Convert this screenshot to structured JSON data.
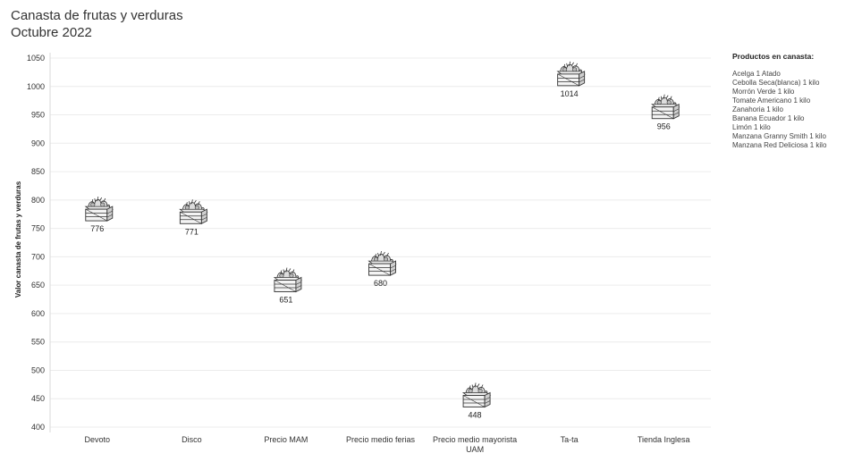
{
  "header": {
    "title_line1": "Canasta de frutas y verduras",
    "title_line2": "Octubre 2022"
  },
  "legend": {
    "title": "Productos en canasta:",
    "items": [
      "Acelga  1 Atado",
      "Cebolla Seca(blanca)  1 kilo",
      "Morrón Verde  1 kilo",
      "Tomate Americano 1 kilo",
      "Zanahoria 1 kilo",
      "Banana Ecuador  1 kilo",
      "Limón   1 kilo",
      "Manzana Granny Smith  1 kilo",
      "Manzana Red Deliciosa 1 kilo"
    ]
  },
  "chart_data": {
    "type": "scatter",
    "marker_icon": "produce-crate-icon",
    "ylabel": "Valor canasta de frutas y verduras",
    "xlabel": "",
    "ylim": [
      400,
      1050
    ],
    "yticks": [
      400,
      450,
      500,
      550,
      600,
      650,
      700,
      750,
      800,
      850,
      900,
      950,
      1000,
      1050
    ],
    "grid": true,
    "categories": [
      [
        "Devoto"
      ],
      [
        "Disco"
      ],
      [
        "Precio MAM"
      ],
      [
        "Precio medio ferias"
      ],
      [
        "Precio medio mayorista",
        "UAM"
      ],
      [
        "Ta-ta"
      ],
      [
        "Tienda Inglesa"
      ]
    ],
    "values": [
      776,
      771,
      651,
      680,
      448,
      1014,
      956
    ]
  }
}
